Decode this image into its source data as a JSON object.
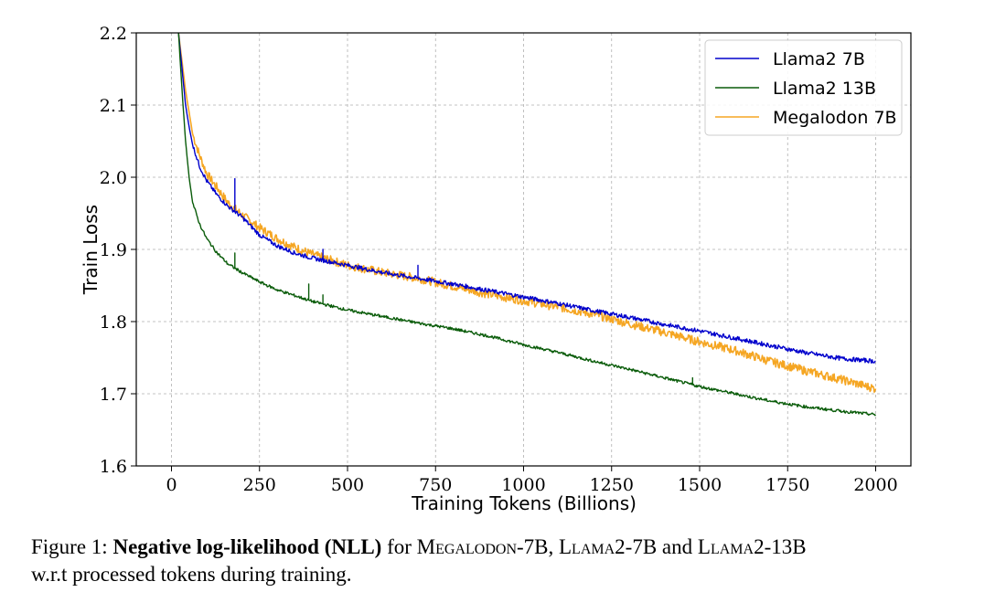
{
  "chart_data": {
    "type": "line",
    "xlabel": "Training Tokens (Billions)",
    "ylabel": "Train Loss",
    "xlim": [
      -100,
      2100
    ],
    "ylim": [
      1.6,
      2.2
    ],
    "xticks": [
      "0",
      "250",
      "500",
      "750",
      "1000",
      "1250",
      "1500",
      "1750",
      "2000"
    ],
    "yticks": [
      "1.6",
      "1.7",
      "1.8",
      "1.9",
      "2.0",
      "2.1",
      "2.2"
    ],
    "grid": true,
    "legend_position": "top-right",
    "series": [
      {
        "name": "Llama2 7B",
        "color": "#0000cc",
        "noise": 0.003,
        "points": [
          [
            20,
            2.2
          ],
          [
            30,
            2.15
          ],
          [
            40,
            2.1
          ],
          [
            50,
            2.07
          ],
          [
            60,
            2.045
          ],
          [
            80,
            2.015
          ],
          [
            100,
            1.995
          ],
          [
            130,
            1.975
          ],
          [
            160,
            1.96
          ],
          [
            200,
            1.945
          ],
          [
            250,
            1.92
          ],
          [
            300,
            1.905
          ],
          [
            350,
            1.895
          ],
          [
            400,
            1.888
          ],
          [
            500,
            1.878
          ],
          [
            600,
            1.868
          ],
          [
            700,
            1.86
          ],
          [
            800,
            1.852
          ],
          [
            900,
            1.843
          ],
          [
            1000,
            1.834
          ],
          [
            1100,
            1.825
          ],
          [
            1200,
            1.815
          ],
          [
            1300,
            1.806
          ],
          [
            1400,
            1.796
          ],
          [
            1500,
            1.787
          ],
          [
            1600,
            1.777
          ],
          [
            1700,
            1.767
          ],
          [
            1800,
            1.757
          ],
          [
            1900,
            1.749
          ],
          [
            2000,
            1.745
          ]
        ],
        "spikes": [
          [
            180,
            1.998
          ],
          [
            430,
            1.9
          ],
          [
            700,
            1.878
          ],
          [
            1020,
            1.835
          ]
        ]
      },
      {
        "name": "Llama2 13B",
        "color": "#0a5c0a",
        "noise": 0.002,
        "points": [
          [
            20,
            2.2
          ],
          [
            30,
            2.12
          ],
          [
            40,
            2.05
          ],
          [
            50,
            2.0
          ],
          [
            60,
            1.965
          ],
          [
            80,
            1.935
          ],
          [
            100,
            1.915
          ],
          [
            130,
            1.895
          ],
          [
            160,
            1.88
          ],
          [
            200,
            1.868
          ],
          [
            250,
            1.855
          ],
          [
            300,
            1.844
          ],
          [
            350,
            1.836
          ],
          [
            400,
            1.828
          ],
          [
            500,
            1.816
          ],
          [
            600,
            1.807
          ],
          [
            700,
            1.798
          ],
          [
            800,
            1.79
          ],
          [
            900,
            1.78
          ],
          [
            1000,
            1.768
          ],
          [
            1100,
            1.757
          ],
          [
            1200,
            1.745
          ],
          [
            1300,
            1.734
          ],
          [
            1400,
            1.722
          ],
          [
            1500,
            1.71
          ],
          [
            1600,
            1.7
          ],
          [
            1700,
            1.69
          ],
          [
            1800,
            1.682
          ],
          [
            1900,
            1.676
          ],
          [
            2000,
            1.671
          ]
        ],
        "spikes": [
          [
            180,
            1.895
          ],
          [
            390,
            1.852
          ],
          [
            430,
            1.837
          ],
          [
            1480,
            1.722
          ]
        ]
      },
      {
        "name": "Megalodon 7B",
        "color": "#f5a623",
        "noise": 0.006,
        "points": [
          [
            20,
            2.2
          ],
          [
            30,
            2.16
          ],
          [
            40,
            2.12
          ],
          [
            50,
            2.09
          ],
          [
            60,
            2.06
          ],
          [
            80,
            2.03
          ],
          [
            100,
            2.005
          ],
          [
            130,
            1.985
          ],
          [
            160,
            1.965
          ],
          [
            200,
            1.948
          ],
          [
            250,
            1.93
          ],
          [
            300,
            1.915
          ],
          [
            350,
            1.903
          ],
          [
            400,
            1.893
          ],
          [
            500,
            1.878
          ],
          [
            600,
            1.868
          ],
          [
            700,
            1.86
          ],
          [
            800,
            1.849
          ],
          [
            900,
            1.838
          ],
          [
            1000,
            1.829
          ],
          [
            1100,
            1.82
          ],
          [
            1200,
            1.81
          ],
          [
            1300,
            1.797
          ],
          [
            1400,
            1.785
          ],
          [
            1500,
            1.772
          ],
          [
            1600,
            1.76
          ],
          [
            1700,
            1.745
          ],
          [
            1800,
            1.732
          ],
          [
            1900,
            1.72
          ],
          [
            2000,
            1.707
          ]
        ],
        "spikes": []
      }
    ]
  },
  "caption": {
    "prefix": "Figure 1: ",
    "bold": "Negative log-likelihood (NLL)",
    "text1": " for ",
    "m1": "Megalodon",
    "t2": "-7B, ",
    "m2": "Llama",
    "t3": "2-7B and ",
    "m3": "Llama",
    "t4": "2-13B",
    "line2": "w.r.t processed tokens during training."
  }
}
